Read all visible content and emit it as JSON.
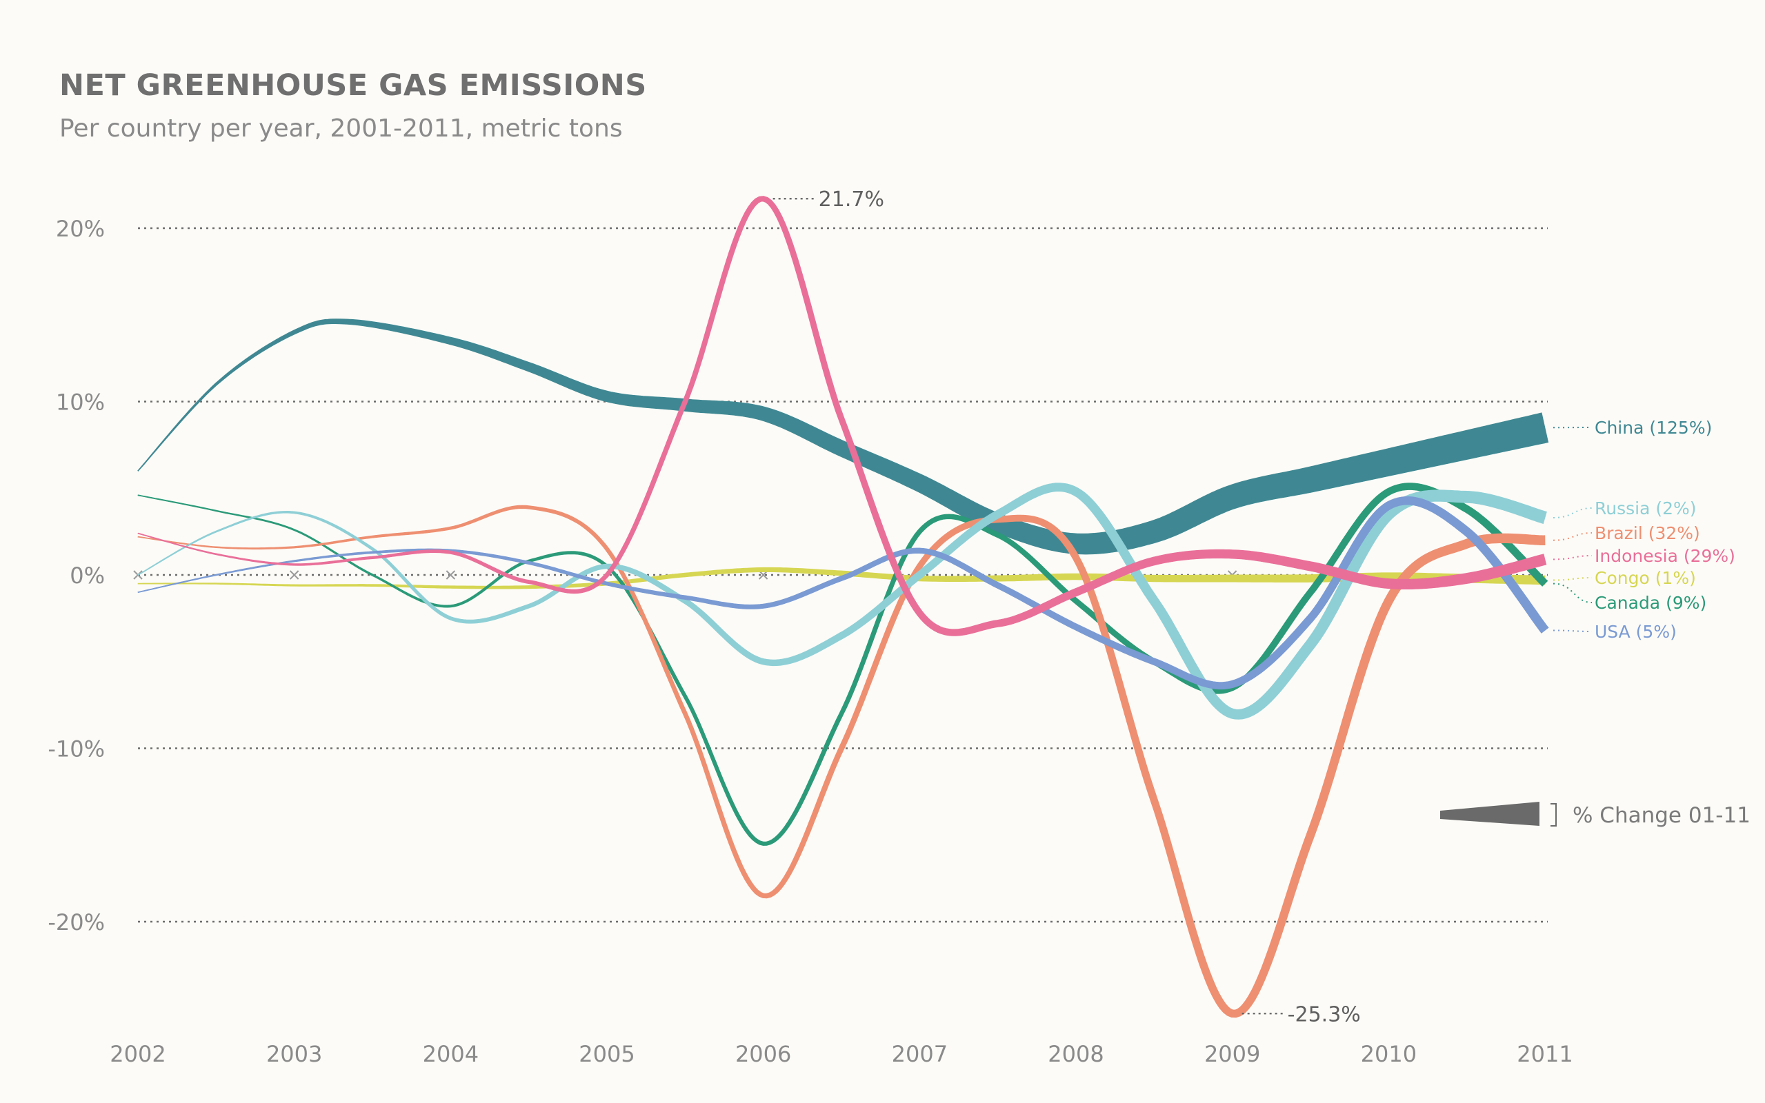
{
  "chart_data": {
    "type": "line",
    "title": "NET GREENHOUSE GAS EMISSIONS",
    "subtitle": "Per country per year, 2001-2011, metric tons",
    "x": [
      2002,
      2003,
      2004,
      2005,
      2006,
      2007,
      2008,
      2009,
      2010,
      2011
    ],
    "x_tick_labels": [
      "2002",
      "2003",
      "2004",
      "2005",
      "2006",
      "2007",
      "2008",
      "2009",
      "2010",
      "2011"
    ],
    "y_ticks": [
      20,
      10,
      0,
      -10,
      -20
    ],
    "y_tick_labels": [
      "20%",
      "10%",
      "0%",
      "-10%",
      "-20%"
    ],
    "ylim": [
      -26,
      22
    ],
    "grid": "horizontal dotted",
    "legend_placement": "right",
    "series": [
      {
        "name": "China",
        "label": "China (125%)",
        "color": "#3f8893",
        "x": [
          2002,
          2002.5,
          2003,
          2003.35,
          2004,
          2004.5,
          2005,
          2005.5,
          2006,
          2006.5,
          2007,
          2007.5,
          2008,
          2008.5,
          2009,
          2009.5,
          2010,
          2010.5,
          2011
        ],
        "values": [
          6,
          11,
          14,
          14.6,
          13.5,
          12,
          10.3,
          9.8,
          9.3,
          7.3,
          5.3,
          3,
          1.8,
          2.5,
          4.5,
          5.5,
          6.5,
          7.5,
          8.5
        ]
      },
      {
        "name": "Russia",
        "label": "Russia (2%)",
        "color": "#8ecfd6",
        "x": [
          2002,
          2002.5,
          2003,
          2003.5,
          2004,
          2004.5,
          2005,
          2005.5,
          2006,
          2006.5,
          2007,
          2007.5,
          2008,
          2008.5,
          2009,
          2009.5,
          2010,
          2010.5,
          2011
        ],
        "values": [
          0,
          2.5,
          3.6,
          1.5,
          -2.5,
          -1.8,
          0.5,
          -1.5,
          -5,
          -3.5,
          0,
          3.5,
          4.8,
          -1.5,
          -8,
          -4,
          3.5,
          4.5,
          3.3
        ]
      },
      {
        "name": "Brazil",
        "label": "Brazil (32%)",
        "color": "#ee8f71",
        "x": [
          2002,
          2002.5,
          2003,
          2003.5,
          2004,
          2004.5,
          2005,
          2005.5,
          2006,
          2006.5,
          2007,
          2007.5,
          2008,
          2008.5,
          2009,
          2009.5,
          2010,
          2010.5,
          2011
        ],
        "values": [
          2.2,
          1.6,
          1.6,
          2.2,
          2.7,
          3.9,
          1.5,
          -8,
          -18.5,
          -10,
          0.5,
          3.2,
          1,
          -13,
          -25.3,
          -15,
          -1.5,
          1.8,
          2
        ]
      },
      {
        "name": "Indonesia",
        "label": "Indonesia (29%)",
        "color": "#e96f99",
        "x": [
          2002,
          2002.5,
          2003,
          2003.5,
          2004,
          2004.5,
          2005,
          2005.5,
          2006,
          2006.5,
          2007,
          2007.5,
          2008,
          2008.5,
          2009,
          2009.5,
          2010,
          2010.5,
          2011
        ],
        "values": [
          2.4,
          1.2,
          0.6,
          1,
          1.3,
          -0.4,
          0,
          10,
          21.7,
          9,
          -2.2,
          -2.8,
          -1,
          0.8,
          1.2,
          0.5,
          -0.5,
          -0.2,
          0.9
        ]
      },
      {
        "name": "Congo",
        "label": "Congo (1%)",
        "color": "#d6d653",
        "x": [
          2002,
          2002.5,
          2003,
          2003.5,
          2004,
          2004.5,
          2005,
          2005.5,
          2006,
          2006.5,
          2007,
          2007.5,
          2008,
          2008.5,
          2009,
          2009.5,
          2010,
          2010.5,
          2011
        ],
        "values": [
          -0.5,
          -0.5,
          -0.6,
          -0.6,
          -0.7,
          -0.7,
          -0.5,
          0,
          0.3,
          0.1,
          -0.2,
          -0.2,
          -0.1,
          -0.2,
          -0.2,
          -0.2,
          -0.1,
          -0.2,
          -0.3
        ]
      },
      {
        "name": "Canada",
        "label": "Canada (9%)",
        "color": "#2b9a78",
        "x": [
          2002,
          2002.5,
          2003,
          2003.5,
          2004,
          2004.5,
          2005,
          2005.5,
          2006,
          2006.5,
          2007,
          2007.5,
          2008,
          2008.5,
          2009,
          2009.5,
          2010,
          2010.5,
          2011
        ],
        "values": [
          4.6,
          3.7,
          2.6,
          0,
          -1.8,
          0.8,
          0.5,
          -7,
          -15.5,
          -8,
          2.5,
          2.3,
          -1.5,
          -5,
          -6.5,
          -1,
          4.8,
          3.8,
          -0.5
        ]
      },
      {
        "name": "USA",
        "label": "USA (5%)",
        "color": "#7a9ad3",
        "x": [
          2002,
          2002.5,
          2003,
          2003.5,
          2004,
          2004.5,
          2005,
          2005.5,
          2006,
          2006.5,
          2007,
          2007.5,
          2008,
          2008.5,
          2009,
          2009.5,
          2010,
          2010.5,
          2011
        ],
        "values": [
          -1,
          0,
          0.8,
          1.3,
          1.4,
          0.7,
          -0.5,
          -1.3,
          -1.8,
          -0.2,
          1.4,
          -0.6,
          -3,
          -5,
          -6.3,
          -2.5,
          4,
          2.5,
          -3.2
        ]
      }
    ],
    "annotations": [
      {
        "text": "21.7%",
        "x": 2006,
        "y": 21.7,
        "series": "Indonesia"
      },
      {
        "text": "-25.3%",
        "x": 2009,
        "y": -25.3,
        "series": "Brazil"
      }
    ],
    "legend": {
      "text": "% Change 01-11",
      "color": "#6a6a6a"
    },
    "zero_markers": [
      2002,
      2003,
      2004,
      2006,
      2009
    ]
  }
}
